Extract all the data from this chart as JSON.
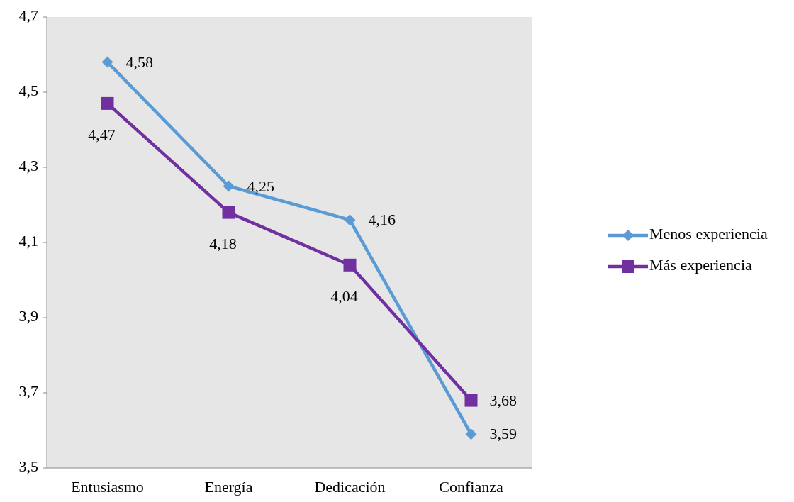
{
  "chart_data": {
    "type": "line",
    "categories": [
      "Entusiasmo",
      "Energía",
      "Dedicación",
      "Confianza"
    ],
    "series": [
      {
        "name": "Menos experiencia",
        "color": "#5b9bd5",
        "marker": "diamond",
        "values": [
          4.58,
          4.25,
          4.16,
          3.59
        ],
        "value_labels": [
          "4,58",
          "4,25",
          "4,16",
          "3,59"
        ]
      },
      {
        "name": "Más experiencia",
        "color": "#7030a0",
        "marker": "square",
        "values": [
          4.47,
          4.18,
          4.04,
          3.68
        ],
        "value_labels": [
          "4,47",
          "4,18",
          "4,04",
          "3,68"
        ]
      }
    ],
    "ylim": [
      3.5,
      4.7
    ],
    "yticks": [
      {
        "value": 3.5,
        "label": "3,5"
      },
      {
        "value": 3.7,
        "label": "3,7"
      },
      {
        "value": 3.9,
        "label": "3,9"
      },
      {
        "value": 4.1,
        "label": "4,1"
      },
      {
        "value": 4.3,
        "label": "4,3"
      },
      {
        "value": 4.5,
        "label": "4,5"
      },
      {
        "value": 4.7,
        "label": "4,7"
      }
    ],
    "grid": false,
    "legend": "right"
  }
}
